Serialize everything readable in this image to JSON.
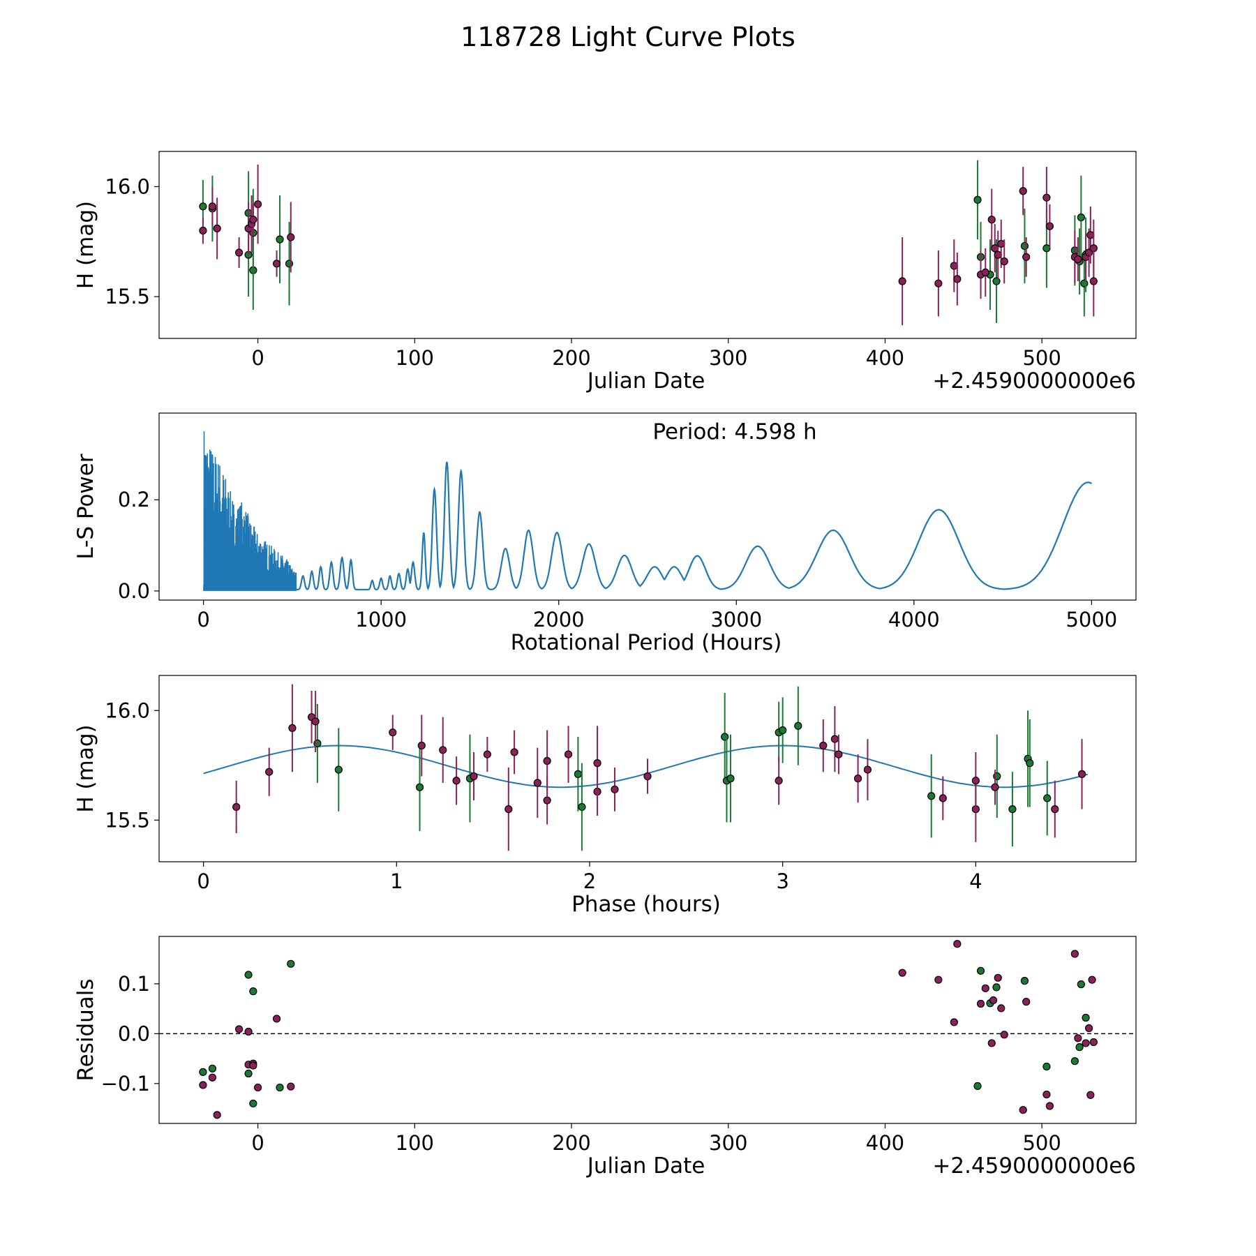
{
  "title": "118728 Light Curve Plots",
  "colors": {
    "green": "#1a7a35",
    "purple": "#8a2158",
    "curve": "#1f77b4",
    "marker_edge": "#000000"
  },
  "chart_data": [
    {
      "type": "scatter",
      "name": "light-curve",
      "xlabel": "Julian Date",
      "ylabel": "H (mag)",
      "x_offset_label": "+2.4590000000e6",
      "xlim": [
        -63,
        560
      ],
      "ylim": [
        15.31,
        16.16
      ],
      "xticks": [
        0,
        100,
        200,
        300,
        400,
        500
      ],
      "yticks": [
        15.5,
        16.0
      ],
      "ytick_labels": [
        "15.5",
        "16.0"
      ],
      "series": [
        {
          "name": "filter-g",
          "color_key": "green",
          "points": [
            [
              -35,
              15.91,
              0.12
            ],
            [
              -29,
              15.9,
              0.15
            ],
            [
              -6,
              15.69,
              0.19
            ],
            [
              -6,
              15.88,
              0.19
            ],
            [
              -3,
              15.62,
              0.18
            ],
            [
              -3,
              15.79,
              0.2
            ],
            [
              14,
              15.76,
              0.2
            ],
            [
              20,
              15.65,
              0.19
            ],
            [
              459,
              15.94,
              0.18
            ],
            [
              461,
              15.68,
              0.16
            ],
            [
              467,
              15.6,
              0.16
            ],
            [
              471,
              15.57,
              0.19
            ],
            [
              489,
              15.73,
              0.17
            ],
            [
              503,
              15.72,
              0.18
            ],
            [
              521,
              15.71,
              0.16
            ],
            [
              524,
              15.66,
              0.15
            ],
            [
              525,
              15.86,
              0.19
            ],
            [
              527,
              15.56,
              0.15
            ],
            [
              528,
              15.69,
              0.17
            ]
          ]
        },
        {
          "name": "filter-r",
          "color_key": "purple",
          "points": [
            [
              -35,
              15.8,
              0.06
            ],
            [
              -29,
              15.91,
              0.09
            ],
            [
              -26,
              15.81,
              0.14
            ],
            [
              -12,
              15.7,
              0.07
            ],
            [
              -6,
              15.81,
              0.12
            ],
            [
              -4,
              15.83,
              0.13
            ],
            [
              -3,
              15.85,
              0.07
            ],
            [
              0,
              15.92,
              0.18
            ],
            [
              12,
              15.65,
              0.06
            ],
            [
              21,
              15.77,
              0.16
            ],
            [
              411,
              15.57,
              0.2
            ],
            [
              434,
              15.56,
              0.15
            ],
            [
              444,
              15.64,
              0.12
            ],
            [
              446,
              15.58,
              0.12
            ],
            [
              461,
              15.6,
              0.11
            ],
            [
              464,
              15.61,
              0.11
            ],
            [
              468,
              15.85,
              0.14
            ],
            [
              470,
              15.72,
              0.11
            ],
            [
              472,
              15.69,
              0.11
            ],
            [
              474,
              15.74,
              0.11
            ],
            [
              476,
              15.66,
              0.1
            ],
            [
              488,
              15.98,
              0.11
            ],
            [
              490,
              15.68,
              0.09
            ],
            [
              503,
              15.95,
              0.14
            ],
            [
              505,
              15.82,
              0.1
            ],
            [
              521,
              15.68,
              0.12
            ],
            [
              523,
              15.67,
              0.1
            ],
            [
              528,
              15.68,
              0.11
            ],
            [
              530,
              15.7,
              0.11
            ],
            [
              531,
              15.78,
              0.13
            ],
            [
              533,
              15.72,
              0.13
            ],
            [
              533,
              15.57,
              0.16
            ]
          ]
        }
      ]
    },
    {
      "type": "line",
      "name": "periodogram",
      "xlabel": "Rotational Period (Hours)",
      "ylabel": "L-S Power",
      "annotation": "Period: 4.598 h",
      "xlim": [
        -250,
        5250
      ],
      "ylim": [
        -0.02,
        0.39
      ],
      "xticks": [
        0,
        1000,
        2000,
        3000,
        4000,
        5000
      ],
      "yticks": [
        0.0,
        0.2
      ],
      "ytick_labels": [
        "0.0",
        "0.2"
      ],
      "dense_region": {
        "x_max": 520,
        "envelope": [
          [
            2,
            0.37
          ],
          [
            30,
            0.33
          ],
          [
            60,
            0.31
          ],
          [
            90,
            0.29
          ],
          [
            120,
            0.26
          ],
          [
            150,
            0.22
          ],
          [
            180,
            0.19
          ],
          [
            220,
            0.2
          ],
          [
            260,
            0.16
          ],
          [
            300,
            0.13
          ],
          [
            340,
            0.115
          ],
          [
            380,
            0.1
          ],
          [
            420,
            0.085
          ],
          [
            460,
            0.075
          ],
          [
            500,
            0.05
          ],
          [
            520,
            0.04
          ]
        ]
      },
      "peaks": [
        [
          560,
          0.03,
          12
        ],
        [
          610,
          0.04,
          12
        ],
        [
          660,
          0.05,
          12
        ],
        [
          720,
          0.06,
          13
        ],
        [
          780,
          0.07,
          14
        ],
        [
          830,
          0.065,
          12
        ],
        [
          950,
          0.02,
          10
        ],
        [
          1000,
          0.025,
          11
        ],
        [
          1050,
          0.03,
          11
        ],
        [
          1100,
          0.035,
          12
        ],
        [
          1150,
          0.045,
          12
        ],
        [
          1180,
          0.06,
          13
        ],
        [
          1240,
          0.125,
          12
        ],
        [
          1300,
          0.22,
          17
        ],
        [
          1370,
          0.28,
          19
        ],
        [
          1450,
          0.26,
          21
        ],
        [
          1555,
          0.17,
          24
        ],
        [
          1700,
          0.09,
          33
        ],
        [
          1830,
          0.13,
          36
        ],
        [
          1990,
          0.125,
          42
        ],
        [
          2170,
          0.1,
          50
        ],
        [
          2370,
          0.075,
          58
        ],
        [
          2540,
          0.05,
          60
        ],
        [
          2650,
          0.05,
          60
        ],
        [
          2780,
          0.074,
          65
        ],
        [
          3120,
          0.095,
          95
        ],
        [
          3545,
          0.13,
          130
        ],
        [
          4140,
          0.175,
          160
        ],
        [
          4980,
          0.235,
          200
        ]
      ]
    },
    {
      "type": "scatter",
      "name": "phase-plot",
      "xlabel": "Phase (hours)",
      "ylabel": "H (mag)",
      "xlim": [
        -0.23,
        4.83
      ],
      "ylim": [
        15.31,
        16.16
      ],
      "xticks": [
        0,
        1,
        2,
        3,
        4
      ],
      "yticks": [
        15.5,
        16.0
      ],
      "ytick_labels": [
        "15.5",
        "16.0"
      ],
      "model": {
        "mean": 15.745,
        "amplitude": 0.095,
        "phase0": 0.7,
        "half_period": 2.299,
        "x_max": 4.598
      },
      "series": [
        {
          "name": "filter-g",
          "color_key": "green",
          "points": [
            [
              0.59,
              15.85,
              0.18
            ],
            [
              0.7,
              15.73,
              0.19
            ],
            [
              1.12,
              15.65,
              0.2
            ],
            [
              1.38,
              15.69,
              0.2
            ],
            [
              1.94,
              15.71,
              0.17
            ],
            [
              1.96,
              15.56,
              0.2
            ],
            [
              2.7,
              15.88,
              0.2
            ],
            [
              2.71,
              15.68,
              0.19
            ],
            [
              2.73,
              15.69,
              0.2
            ],
            [
              2.98,
              15.9,
              0.14
            ],
            [
              3.0,
              15.91,
              0.15
            ],
            [
              3.08,
              15.93,
              0.18
            ],
            [
              3.77,
              15.61,
              0.19
            ],
            [
              4.11,
              15.7,
              0.19
            ],
            [
              4.19,
              15.55,
              0.17
            ],
            [
              4.27,
              15.78,
              0.22
            ],
            [
              4.28,
              15.76,
              0.2
            ],
            [
              4.37,
              15.6,
              0.17
            ]
          ]
        },
        {
          "name": "filter-r",
          "color_key": "purple",
          "points": [
            [
              0.17,
              15.56,
              0.12
            ],
            [
              0.34,
              15.72,
              0.11
            ],
            [
              0.46,
              15.92,
              0.2
            ],
            [
              0.56,
              15.97,
              0.12
            ],
            [
              0.58,
              15.95,
              0.14
            ],
            [
              0.98,
              15.9,
              0.08
            ],
            [
              1.13,
              15.84,
              0.14
            ],
            [
              1.24,
              15.82,
              0.15
            ],
            [
              1.31,
              15.68,
              0.11
            ],
            [
              1.4,
              15.7,
              0.11
            ],
            [
              1.47,
              15.8,
              0.08
            ],
            [
              1.58,
              15.55,
              0.19
            ],
            [
              1.61,
              15.81,
              0.1
            ],
            [
              1.73,
              15.67,
              0.16
            ],
            [
              1.78,
              15.59,
              0.11
            ],
            [
              1.78,
              15.77,
              0.14
            ],
            [
              1.89,
              15.8,
              0.13
            ],
            [
              2.04,
              15.63,
              0.11
            ],
            [
              2.04,
              15.76,
              0.17
            ],
            [
              2.13,
              15.64,
              0.1
            ],
            [
              2.3,
              15.7,
              0.08
            ],
            [
              2.98,
              15.68,
              0.11
            ],
            [
              3.21,
              15.84,
              0.12
            ],
            [
              3.27,
              15.87,
              0.15
            ],
            [
              3.29,
              15.8,
              0.09
            ],
            [
              3.39,
              15.69,
              0.11
            ],
            [
              3.44,
              15.73,
              0.14
            ],
            [
              3.83,
              15.6,
              0.1
            ],
            [
              4.0,
              15.55,
              0.15
            ],
            [
              4.0,
              15.68,
              0.13
            ],
            [
              4.1,
              15.65,
              0.08
            ],
            [
              4.41,
              15.55,
              0.13
            ],
            [
              4.55,
              15.71,
              0.16
            ]
          ]
        }
      ]
    },
    {
      "type": "scatter",
      "name": "residuals",
      "xlabel": "Julian Date",
      "ylabel": "Residuals",
      "x_offset_label": "+2.4590000000e6",
      "xlim": [
        -63,
        560
      ],
      "ylim": [
        -0.18,
        0.195
      ],
      "xticks": [
        0,
        100,
        200,
        300,
        400,
        500
      ],
      "yticks": [
        -0.1,
        0.0,
        0.1
      ],
      "ytick_labels": [
        "−0.1",
        "0.0",
        "0.1"
      ],
      "zero_line": true,
      "series": [
        {
          "name": "filter-g",
          "color_key": "green",
          "points": [
            [
              -35,
              -0.077
            ],
            [
              -29,
              -0.07
            ],
            [
              -6,
              0.118
            ],
            [
              -6,
              -0.08
            ],
            [
              -3,
              0.085
            ],
            [
              -3,
              -0.14
            ],
            [
              14,
              -0.108
            ],
            [
              21,
              0.14
            ],
            [
              459,
              -0.105
            ],
            [
              461,
              0.126
            ],
            [
              467,
              0.061
            ],
            [
              471,
              0.093
            ],
            [
              489,
              0.106
            ],
            [
              503,
              -0.066
            ],
            [
              521,
              -0.055
            ],
            [
              524,
              -0.027
            ],
            [
              525,
              0.099
            ],
            [
              528,
              0.032
            ]
          ]
        },
        {
          "name": "filter-r",
          "color_key": "purple",
          "points": [
            [
              -35,
              -0.103
            ],
            [
              -29,
              -0.088
            ],
            [
              -26,
              -0.163
            ],
            [
              -12,
              0.009
            ],
            [
              -6,
              0.004
            ],
            [
              -6,
              -0.062
            ],
            [
              -3,
              -0.06
            ],
            [
              -3,
              -0.064
            ],
            [
              0,
              -0.108
            ],
            [
              12,
              0.03
            ],
            [
              21,
              -0.106
            ],
            [
              411,
              0.122
            ],
            [
              434,
              0.108
            ],
            [
              444,
              0.023
            ],
            [
              446,
              0.18
            ],
            [
              461,
              0.06
            ],
            [
              464,
              0.091
            ],
            [
              468,
              -0.019
            ],
            [
              469,
              0.067
            ],
            [
              472,
              0.112
            ],
            [
              474,
              0.051
            ],
            [
              476,
              -0.002
            ],
            [
              488,
              -0.153
            ],
            [
              490,
              0.064
            ],
            [
              503,
              -0.122
            ],
            [
              505,
              -0.145
            ],
            [
              521,
              0.16
            ],
            [
              523,
              -0.009
            ],
            [
              528,
              -0.019
            ],
            [
              530,
              0.011
            ],
            [
              531,
              -0.123
            ],
            [
              532,
              0.108
            ],
            [
              533,
              -0.017
            ]
          ]
        }
      ]
    }
  ]
}
